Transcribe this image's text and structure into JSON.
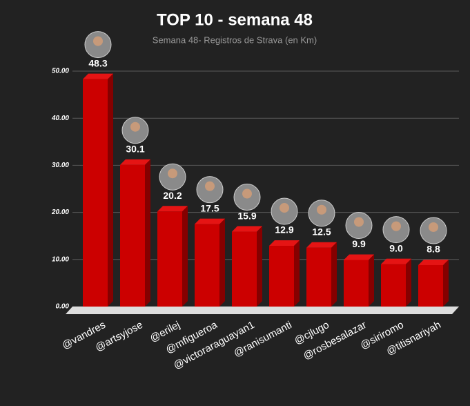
{
  "chart_data": {
    "type": "bar3d",
    "title": "TOP 10 - semana 48",
    "subtitle": "Semana 48- Registros de Strava (en Km)",
    "categories": [
      "@vandres",
      "@artsyjose",
      "@erilej",
      "@mfigueroa",
      "@victoraraguayan1",
      "@ranisumanti",
      "@cjlugo",
      "@rosbesalazar",
      "@siriromo",
      "@titisnariyah"
    ],
    "values": [
      48.3,
      30.1,
      20.2,
      17.5,
      15.9,
      12.9,
      12.5,
      9.9,
      9.0,
      8.8
    ],
    "value_labels": [
      "48.3",
      "30.1",
      "20.2",
      "17.5",
      "15.9",
      "12.9",
      "12.5",
      "9.9",
      "9.0",
      "8.8"
    ],
    "color": "#cc0000",
    "ylim": [
      0,
      50
    ],
    "yticks": [
      {
        "value": 0,
        "label": "0.00"
      },
      {
        "value": 10,
        "label": "10.00"
      },
      {
        "value": 20,
        "label": "20.00"
      },
      {
        "value": 30,
        "label": "30.00"
      },
      {
        "value": 40,
        "label": "40.00"
      },
      {
        "value": 50,
        "label": "50.00"
      }
    ],
    "grid": true
  }
}
